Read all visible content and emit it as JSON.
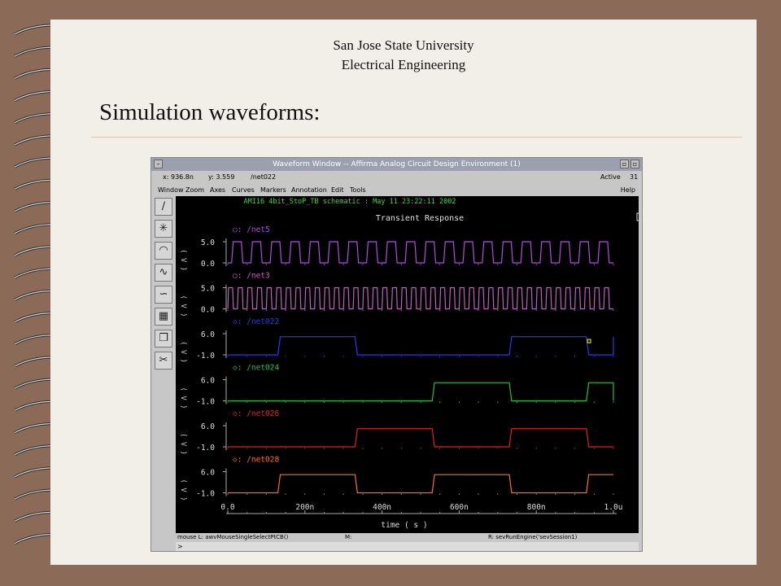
{
  "slide": {
    "header_line1": "San Jose State University",
    "header_line2": "Electrical Engineering",
    "title": "Simulation waveforms:"
  },
  "window": {
    "title": "Waveform Window -- Affirma Analog Circuit Design Environment (1)",
    "close_glyph": "–",
    "min_glyph": "▫",
    "max_glyph": "▫",
    "coord_x": "x: 936.8n",
    "coord_y": "y: 3.559",
    "coord_net": "/net022",
    "status_active": "Active",
    "status_count": "31",
    "menu": [
      "Window",
      "Zoom",
      "Axes",
      "Curves",
      "Markers",
      "Annotation",
      "Edit",
      "Tools"
    ],
    "menu_help": "Help",
    "plot_header": "AMI16 4bit_StoP_TB schematic : May 11 23:22:11 2002",
    "plot_title": "Transient Response",
    "y_unit_label": "( V )",
    "x_axis_label": "time ( s )",
    "status_left": "mouse L: awvMouseSingleSelectPtCB()",
    "status_mid": "M:",
    "status_right": "R: sevRunEngine('sevSession1)",
    "prompt": ">",
    "tools": [
      "line-icon",
      "star-icon",
      "arc-icon",
      "wave-a-icon",
      "wave-b-icon",
      "calculator-icon",
      "copy-icon",
      "cut-icon"
    ]
  },
  "chart_data": {
    "type": "line",
    "title": "Transient Response",
    "xlabel": "time ( s )",
    "x_ticks": [
      "0.0",
      "200n",
      "400n",
      "600n",
      "800n",
      "1.0u"
    ],
    "xlim": [
      0,
      1000
    ],
    "series": [
      {
        "name": "/net5",
        "marker": "○",
        "color": "#b04ce0",
        "ytick_hi": "5.0",
        "ytick_lo": "0.0",
        "ylim": [
          0,
          5
        ],
        "period": 50,
        "duty": 0.5,
        "phase": 10
      },
      {
        "name": "/net3",
        "marker": "○",
        "color": "#c060c0",
        "ytick_hi": "5.0",
        "ytick_lo": "0.0",
        "ylim": [
          0,
          5
        ],
        "period": 25,
        "duty": 0.5,
        "phase": 0
      },
      {
        "name": "/net022",
        "marker": "◇",
        "color": "#3030ff",
        "ytick_hi": "6.0",
        "ytick_lo": "-1.0",
        "ylim": [
          -1,
          6
        ],
        "edges": [
          [
            0,
            -1
          ],
          [
            130,
            5
          ],
          [
            330,
            -1
          ],
          [
            730,
            5
          ],
          [
            930,
            -1
          ],
          [
            1000,
            5
          ]
        ]
      },
      {
        "name": "/net024",
        "marker": "◇",
        "color": "#20c040",
        "ytick_hi": "6.0",
        "ytick_lo": "-1.0",
        "ylim": [
          -1,
          6
        ],
        "edges": [
          [
            0,
            -1
          ],
          [
            530,
            5
          ],
          [
            730,
            -1
          ],
          [
            930,
            5
          ],
          [
            1000,
            -1
          ]
        ]
      },
      {
        "name": "/net026",
        "marker": "◇",
        "color": "#e02020",
        "ytick_hi": "6.0",
        "ytick_lo": "-1.0",
        "ylim": [
          -1,
          6
        ],
        "edges": [
          [
            0,
            -1
          ],
          [
            330,
            5
          ],
          [
            530,
            -1
          ],
          [
            730,
            5
          ],
          [
            930,
            -1
          ],
          [
            1000,
            -1
          ]
        ]
      },
      {
        "name": "/net028",
        "marker": "◇",
        "color": "#ff7010",
        "ytick_hi": "6.0",
        "ytick_lo": "-1.0",
        "ylim": [
          -1,
          6
        ],
        "edges": [
          [
            0,
            -1
          ],
          [
            130,
            5
          ],
          [
            330,
            -1
          ],
          [
            530,
            5
          ],
          [
            730,
            -1
          ],
          [
            930,
            5
          ],
          [
            1000,
            5
          ]
        ]
      }
    ]
  }
}
